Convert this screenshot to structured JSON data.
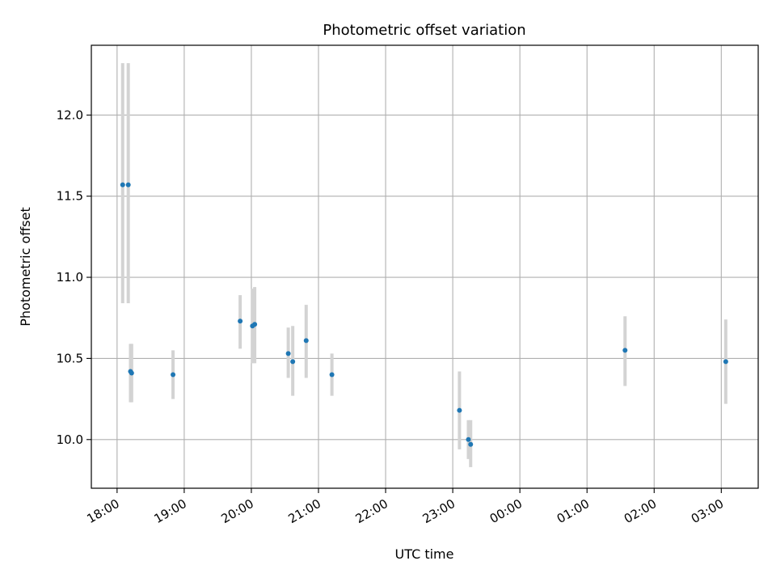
{
  "chart_data": {
    "type": "scatter",
    "title": "Photometric offset variation",
    "xlabel": "UTC time",
    "ylabel": "Photometric offset",
    "x_axis": "time",
    "xlim": [
      "17:37",
      "03:33 (+1 day)"
    ],
    "ylim": [
      9.7,
      12.43
    ],
    "grid": true,
    "colors": {
      "point": "#1f77b4",
      "errorbar": "#d3d3d3",
      "grid": "#b0b0b0"
    },
    "x_ticks": [
      "18:00",
      "19:00",
      "20:00",
      "21:00",
      "22:00",
      "23:00",
      "00:00",
      "01:00",
      "02:00",
      "03:00"
    ],
    "y_ticks": [
      "10.0",
      "10.5",
      "11.0",
      "11.5",
      "12.0"
    ],
    "points": [
      {
        "t": "18:05",
        "y": 11.57,
        "lo": 10.84,
        "hi": 12.32
      },
      {
        "t": "18:10",
        "y": 11.57,
        "lo": 10.84,
        "hi": 12.32
      },
      {
        "t": "18:12",
        "y": 10.42,
        "lo": 10.23,
        "hi": 10.59
      },
      {
        "t": "18:13",
        "y": 10.41,
        "lo": 10.23,
        "hi": 10.59
      },
      {
        "t": "18:50",
        "y": 10.4,
        "lo": 10.25,
        "hi": 10.55
      },
      {
        "t": "19:50",
        "y": 10.73,
        "lo": 10.56,
        "hi": 10.89
      },
      {
        "t": "20:01",
        "y": 10.7,
        "lo": 10.47,
        "hi": 10.93
      },
      {
        "t": "20:03",
        "y": 10.71,
        "lo": 10.47,
        "hi": 10.94
      },
      {
        "t": "20:33",
        "y": 10.53,
        "lo": 10.38,
        "hi": 10.69
      },
      {
        "t": "20:37",
        "y": 10.48,
        "lo": 10.27,
        "hi": 10.7
      },
      {
        "t": "20:49",
        "y": 10.61,
        "lo": 10.38,
        "hi": 10.83
      },
      {
        "t": "21:12",
        "y": 10.4,
        "lo": 10.27,
        "hi": 10.53
      },
      {
        "t": "23:06",
        "y": 10.18,
        "lo": 9.94,
        "hi": 10.42
      },
      {
        "t": "23:14",
        "y": 10.0,
        "lo": 9.88,
        "hi": 10.12
      },
      {
        "t": "23:16",
        "y": 9.97,
        "lo": 9.83,
        "hi": 10.12
      },
      {
        "t": "01:34",
        "y": 10.55,
        "lo": 10.33,
        "hi": 10.76
      },
      {
        "t": "03:04",
        "y": 10.48,
        "lo": 10.22,
        "hi": 10.74
      }
    ]
  }
}
